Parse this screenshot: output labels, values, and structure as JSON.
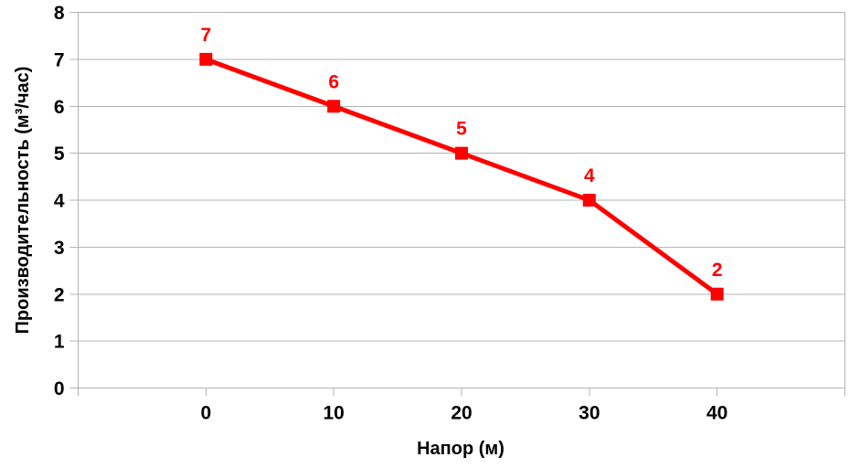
{
  "chart_data": {
    "type": "line",
    "title": "",
    "categories": [
      "0",
      "10",
      "20",
      "30",
      "40"
    ],
    "series": [
      {
        "name": "",
        "values": [
          7,
          6,
          5,
          4,
          2
        ]
      }
    ],
    "data_labels": [
      "7",
      "6",
      "5",
      "4",
      "2"
    ],
    "xlabel": "Напор (м)",
    "ylabel": "Производительность (м³/час)",
    "y_tick_labels": [
      "0",
      "1",
      "2",
      "3",
      "4",
      "5",
      "6",
      "7",
      "8"
    ],
    "ylim": [
      0,
      8
    ],
    "y_step": 1,
    "grid": "horizontal-major",
    "legend_position": "none",
    "marker": "square",
    "marker_size": 14,
    "line_width": 5,
    "colors": {
      "series": "#ff0000",
      "data_label": "#ff0000",
      "grid": "#b3b3b3",
      "axis": "#b3b3b3",
      "text": "#000000",
      "background": "#ffffff"
    }
  }
}
